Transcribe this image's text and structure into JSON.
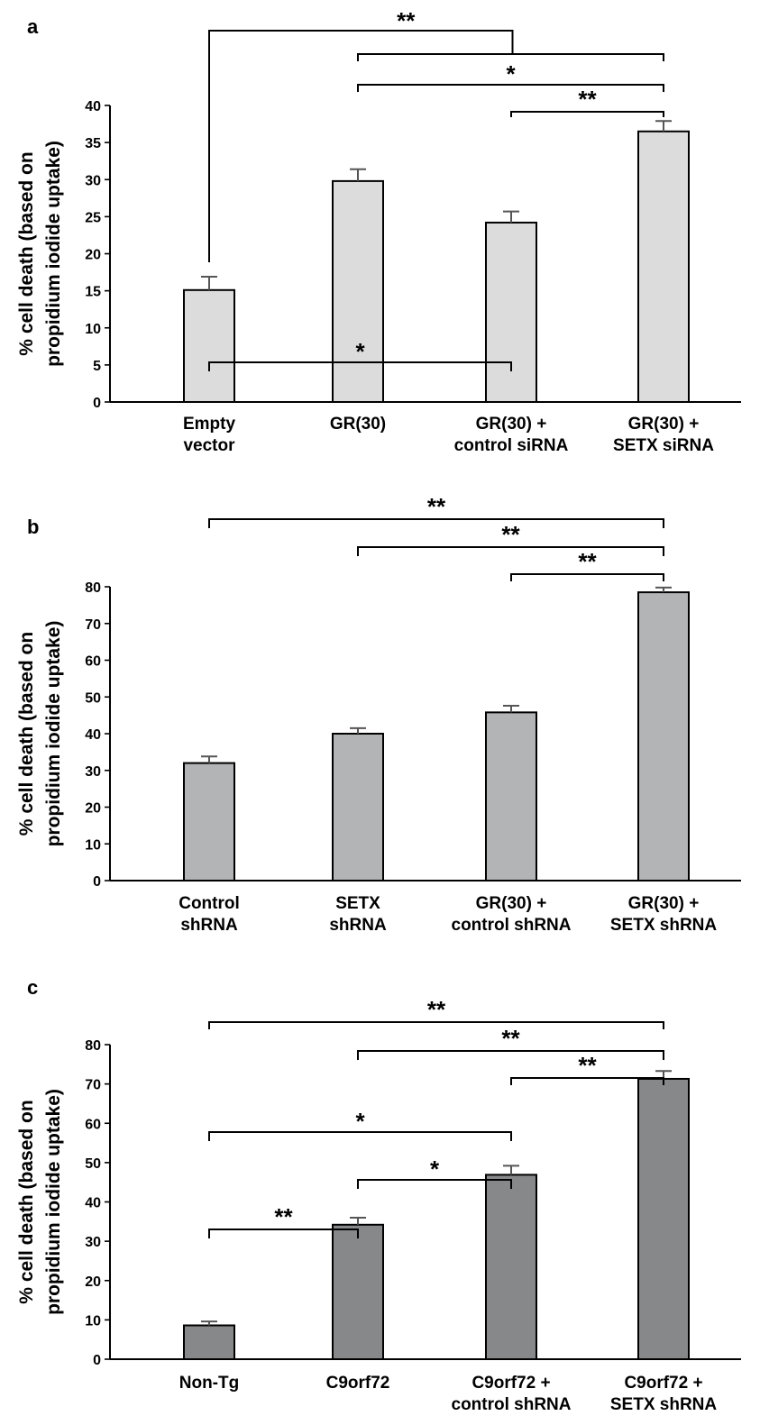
{
  "chart_data": [
    {
      "type": "bar",
      "panel": "a",
      "ylabel_lines": [
        "% cell death (based on",
        "propidium iodide uptake)"
      ],
      "categories": [
        [
          "Empty",
          "vector"
        ],
        [
          "GR(30)"
        ],
        [
          "GR(30) +",
          "control siRNA"
        ],
        [
          "GR(30) +",
          "SETX siRNA"
        ]
      ],
      "values": [
        15.1,
        29.8,
        24.2,
        36.5
      ],
      "errors": [
        1.8,
        1.6,
        1.5,
        1.4
      ],
      "ylim": [
        0,
        40
      ],
      "yticks": [
        0,
        5,
        10,
        15,
        20,
        25,
        30,
        35,
        40
      ],
      "bar_color": "#dcdcdc",
      "significance": [
        {
          "type": "group",
          "from": 0,
          "to": [
            1,
            3
          ],
          "label": "**"
        },
        {
          "from": 1,
          "to": 3,
          "label": "*"
        },
        {
          "from": 2,
          "to": 3,
          "label": "**"
        }
      ]
    },
    {
      "type": "bar",
      "panel": "b",
      "ylabel_lines": [
        "% cell death (based on",
        "propidium iodide uptake)"
      ],
      "categories": [
        [
          "Control",
          "shRNA"
        ],
        [
          "SETX",
          "shRNA"
        ],
        [
          "GR(30) +",
          "control shRNA"
        ],
        [
          "GR(30) +",
          "SETX shRNA"
        ]
      ],
      "values": [
        32,
        40,
        45.8,
        78.5
      ],
      "errors": [
        1.8,
        1.5,
        1.8,
        1.3
      ],
      "ylim": [
        0,
        80
      ],
      "yticks": [
        0,
        10,
        20,
        30,
        40,
        50,
        60,
        70,
        80
      ],
      "bar_color": "#b3b4b6",
      "significance": [
        {
          "from": 0,
          "to": 3,
          "label": "**"
        },
        {
          "from": 1,
          "to": 3,
          "label": "**"
        },
        {
          "from": 2,
          "to": 3,
          "label": "**"
        },
        {
          "from": 0,
          "to": 2,
          "label": "*"
        }
      ]
    },
    {
      "type": "bar",
      "panel": "c",
      "ylabel_lines": [
        "% cell death (based on",
        "propidium iodide uptake)"
      ],
      "categories": [
        [
          "Non-Tg"
        ],
        [
          "C9orf72"
        ],
        [
          "C9orf72 +",
          "control shRNA"
        ],
        [
          "C9orf72 +",
          "SETX shRNA"
        ]
      ],
      "values": [
        8.6,
        34.2,
        46.9,
        71.3
      ],
      "errors": [
        1.0,
        1.8,
        2.3,
        2.0
      ],
      "ylim": [
        0,
        80
      ],
      "yticks": [
        0,
        10,
        20,
        30,
        40,
        50,
        60,
        70,
        80
      ],
      "bar_color": "#878889",
      "significance": [
        {
          "from": 0,
          "to": 3,
          "label": "**"
        },
        {
          "from": 1,
          "to": 3,
          "label": "**"
        },
        {
          "from": 2,
          "to": 3,
          "label": "**"
        },
        {
          "from": 0,
          "to": 2,
          "label": "*"
        },
        {
          "from": 1,
          "to": 2,
          "label": "*"
        },
        {
          "from": 0,
          "to": 1,
          "label": "**"
        }
      ]
    }
  ]
}
